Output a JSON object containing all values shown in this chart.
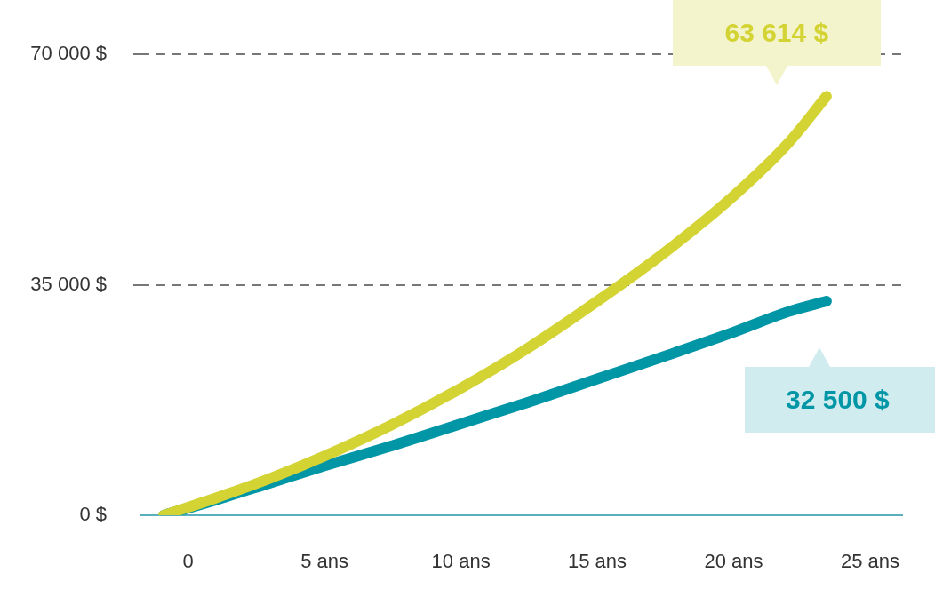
{
  "chart_data": {
    "type": "line",
    "xlim": [
      -1.75,
      26.2
    ],
    "xticks": [
      0,
      {
        "value": 5,
        "label": "5 ans"
      },
      {
        "value": 10,
        "label": "10 ans"
      },
      {
        "value": 15,
        "label": "15 ans"
      },
      {
        "value": 20,
        "label": "20 ans"
      },
      {
        "value": 25,
        "label": "25 ans"
      }
    ],
    "ylim": [
      0,
      70000
    ],
    "yticks": [
      {
        "value": 0,
        "label": "0 $"
      },
      {
        "value": 35000,
        "label": "35 000 $"
      },
      {
        "value": 70000,
        "label": "70 000 $"
      }
    ],
    "grid": "y",
    "line_style": "solid",
    "marker": "none",
    "legend": false,
    "series": [
      {
        "color": "#d3d334",
        "x": [
          -0.9,
          1,
          3,
          5,
          7.5,
          10,
          12.5,
          15,
          17.5,
          20,
          22,
          23.4
        ],
        "values": [
          0,
          2600,
          5600,
          9000,
          13800,
          19300,
          25500,
          32500,
          40000,
          48500,
          56500,
          63614
        ]
      },
      {
        "color": "#0096a6",
        "x": [
          -0.9,
          1,
          3,
          5,
          7.5,
          10,
          12.5,
          15,
          17.5,
          20,
          22,
          23.4
        ],
        "values": [
          0,
          2300,
          4900,
          7500,
          10600,
          13900,
          17200,
          20700,
          24200,
          27800,
          30900,
          32500
        ]
      }
    ],
    "annotations": [
      "63 614 $",
      "32 500 $"
    ]
  }
}
